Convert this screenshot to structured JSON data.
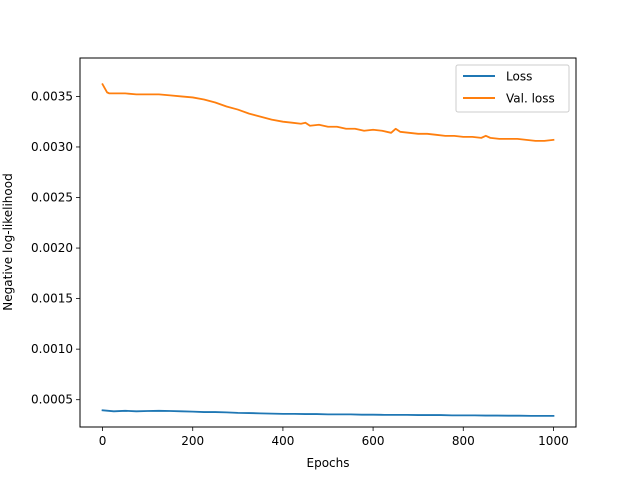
{
  "chart_data": {
    "type": "line",
    "xlabel": "Epochs",
    "ylabel": "Negative log-likelihood",
    "xlim": [
      -50,
      1050
    ],
    "ylim": [
      0.00023,
      0.00388
    ],
    "xticks": [
      0,
      200,
      400,
      600,
      800,
      1000
    ],
    "yticks": [
      0.0005,
      0.001,
      0.0015,
      0.002,
      0.0025,
      0.003,
      0.0035
    ],
    "xtick_labels": [
      "0",
      "200",
      "400",
      "600",
      "800",
      "1000"
    ],
    "ytick_labels": [
      "0.0005",
      "0.0010",
      "0.0015",
      "0.0020",
      "0.0025",
      "0.0030",
      "0.0035"
    ],
    "legend_position": "top-right",
    "grid": false,
    "series": [
      {
        "name": "Loss",
        "color": "#1f77b4",
        "x": [
          0,
          25,
          50,
          75,
          100,
          125,
          150,
          175,
          200,
          225,
          250,
          275,
          300,
          325,
          350,
          375,
          400,
          425,
          450,
          475,
          500,
          525,
          550,
          575,
          600,
          625,
          650,
          675,
          700,
          725,
          750,
          775,
          800,
          825,
          850,
          875,
          900,
          925,
          950,
          975,
          1000
        ],
        "values": [
          0.000395,
          0.000385,
          0.00039,
          0.000385,
          0.000388,
          0.00039,
          0.000388,
          0.000385,
          0.000382,
          0.000378,
          0.000378,
          0.000375,
          0.00037,
          0.000368,
          0.000365,
          0.000362,
          0.00036,
          0.00036,
          0.000358,
          0.000358,
          0.000355,
          0.000355,
          0.000355,
          0.000352,
          0.000352,
          0.00035,
          0.00035,
          0.00035,
          0.000348,
          0.000348,
          0.000348,
          0.000345,
          0.000345,
          0.000345,
          0.000343,
          0.000343,
          0.000342,
          0.000342,
          0.00034,
          0.00034,
          0.00034
        ]
      },
      {
        "name": "Val. loss",
        "color": "#ff7f0e",
        "x": [
          0,
          5,
          10,
          15,
          20,
          30,
          50,
          75,
          100,
          125,
          150,
          175,
          200,
          225,
          250,
          275,
          300,
          325,
          350,
          375,
          400,
          420,
          440,
          450,
          460,
          480,
          500,
          520,
          540,
          560,
          580,
          600,
          620,
          640,
          650,
          660,
          680,
          700,
          720,
          740,
          760,
          780,
          800,
          820,
          840,
          850,
          860,
          880,
          900,
          920,
          940,
          960,
          980,
          1000
        ],
        "values": [
          0.00362,
          0.00358,
          0.00354,
          0.00353,
          0.00353,
          0.00353,
          0.00353,
          0.00352,
          0.00352,
          0.00352,
          0.00351,
          0.0035,
          0.00349,
          0.00347,
          0.00344,
          0.0034,
          0.00337,
          0.00333,
          0.0033,
          0.00327,
          0.00325,
          0.00324,
          0.00323,
          0.00324,
          0.00321,
          0.00322,
          0.0032,
          0.0032,
          0.00318,
          0.00318,
          0.00316,
          0.00317,
          0.00316,
          0.00314,
          0.00318,
          0.00315,
          0.00314,
          0.00313,
          0.00313,
          0.00312,
          0.00311,
          0.00311,
          0.0031,
          0.0031,
          0.00309,
          0.00311,
          0.00309,
          0.00308,
          0.00308,
          0.00308,
          0.00307,
          0.00306,
          0.00306,
          0.00307
        ]
      }
    ]
  }
}
